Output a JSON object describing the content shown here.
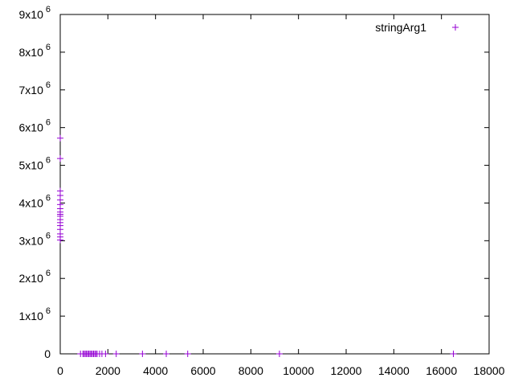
{
  "chart_data": {
    "type": "scatter",
    "title": "",
    "xlabel": "",
    "ylabel": "",
    "xlim": [
      0,
      18000
    ],
    "ylim": [
      0,
      9000000
    ],
    "grid": false,
    "legend_position": "top-right",
    "x_ticks": [
      {
        "value": 0,
        "label": "0"
      },
      {
        "value": 2000,
        "label": "2000"
      },
      {
        "value": 4000,
        "label": "4000"
      },
      {
        "value": 6000,
        "label": "6000"
      },
      {
        "value": 8000,
        "label": "8000"
      },
      {
        "value": 10000,
        "label": "10000"
      },
      {
        "value": 12000,
        "label": "12000"
      },
      {
        "value": 14000,
        "label": "14000"
      },
      {
        "value": 16000,
        "label": "16000"
      },
      {
        "value": 18000,
        "label": "18000"
      }
    ],
    "y_ticks": [
      {
        "value": 0,
        "mantissa": "0",
        "exponent": ""
      },
      {
        "value": 1000000,
        "mantissa": "1x10",
        "exponent": "6"
      },
      {
        "value": 2000000,
        "mantissa": "2x10",
        "exponent": "6"
      },
      {
        "value": 3000000,
        "mantissa": "3x10",
        "exponent": "6"
      },
      {
        "value": 4000000,
        "mantissa": "4x10",
        "exponent": "6"
      },
      {
        "value": 5000000,
        "mantissa": "5x10",
        "exponent": "6"
      },
      {
        "value": 6000000,
        "mantissa": "6x10",
        "exponent": "6"
      },
      {
        "value": 7000000,
        "mantissa": "7x10",
        "exponent": "6"
      },
      {
        "value": 8000000,
        "mantissa": "8x10",
        "exponent": "6"
      },
      {
        "value": 9000000,
        "mantissa": "9x10",
        "exponent": "6"
      }
    ],
    "series": [
      {
        "name": "stringArg1",
        "color": "#9400d3",
        "marker": "plus",
        "points": [
          [
            0,
            5720000
          ],
          [
            0,
            5180000
          ],
          [
            0,
            4320000
          ],
          [
            0,
            4200000
          ],
          [
            0,
            4080000
          ],
          [
            0,
            3960000
          ],
          [
            0,
            3850000
          ],
          [
            0,
            3760000
          ],
          [
            0,
            3700000
          ],
          [
            0,
            3650000
          ],
          [
            0,
            3560000
          ],
          [
            0,
            3480000
          ],
          [
            0,
            3400000
          ],
          [
            0,
            3300000
          ],
          [
            0,
            3180000
          ],
          [
            0,
            3100000
          ],
          [
            0,
            3020000
          ],
          [
            850,
            0
          ],
          [
            950,
            0
          ],
          [
            1000,
            0
          ],
          [
            1050,
            0
          ],
          [
            1100,
            0
          ],
          [
            1150,
            0
          ],
          [
            1200,
            0
          ],
          [
            1250,
            0
          ],
          [
            1300,
            0
          ],
          [
            1350,
            0
          ],
          [
            1400,
            0
          ],
          [
            1450,
            0
          ],
          [
            1500,
            0
          ],
          [
            1550,
            0
          ],
          [
            1650,
            0
          ],
          [
            1750,
            0
          ],
          [
            1900,
            0
          ],
          [
            2350,
            0
          ],
          [
            3450,
            0
          ],
          [
            4450,
            0
          ],
          [
            5350,
            0
          ],
          [
            9200,
            0
          ],
          [
            16500,
            0
          ]
        ]
      }
    ]
  }
}
